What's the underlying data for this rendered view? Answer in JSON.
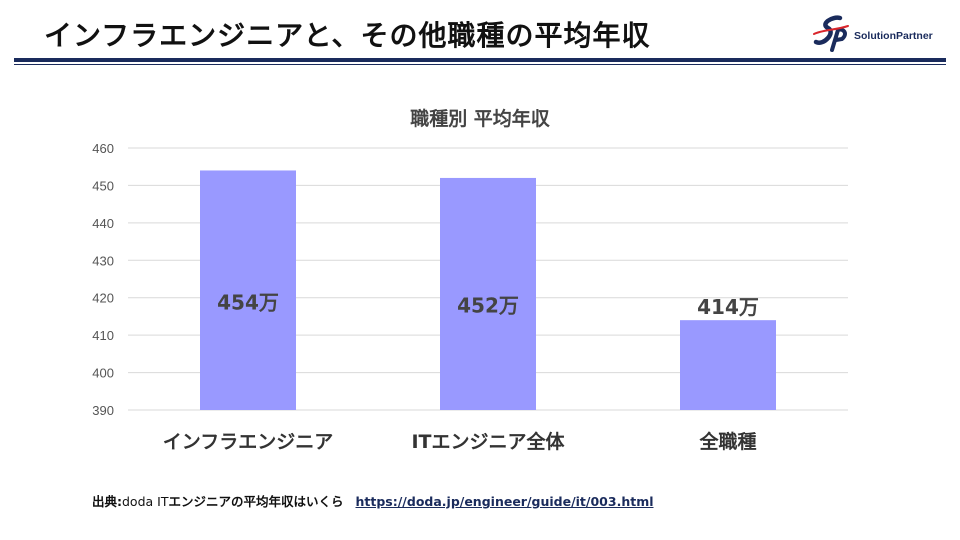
{
  "slide": {
    "title": "インフラエンジニアと、その他職種の平均年収"
  },
  "logo": {
    "text": "SolutionPartner",
    "mark_letters": "SP",
    "color": "#1a2b5c"
  },
  "source": {
    "prefix": "出典:",
    "text_plain": "doda IT",
    "text_bold": "エンジニアの平均年収はいくら",
    "link": "https://doda.jp/engineer/guide/it/003.html"
  },
  "chart_data": {
    "type": "bar",
    "title": "職種別 平均年収",
    "categories": [
      "インフラエンジニア",
      "ITエンジニア全体",
      "全職種"
    ],
    "values": [
      454,
      452,
      414
    ],
    "data_labels": [
      "454万",
      "452万",
      "414万"
    ],
    "ylim": [
      390,
      460
    ],
    "yticks": [
      390,
      400,
      410,
      420,
      430,
      440,
      450,
      460
    ],
    "grid": true,
    "legend": "none",
    "bar_color": "#9999ff",
    "grid_color": "#d9d9d9"
  }
}
